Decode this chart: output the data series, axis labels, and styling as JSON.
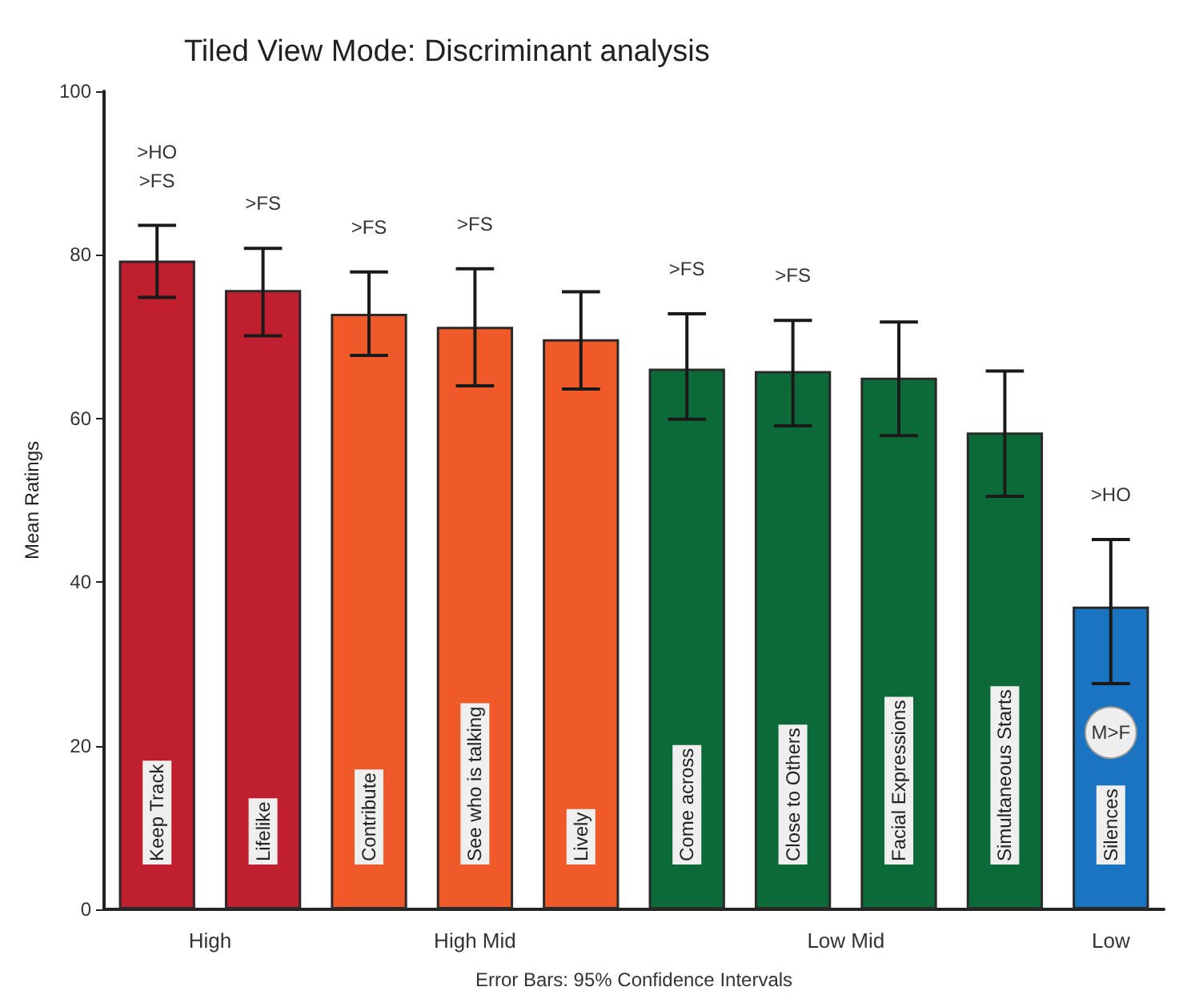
{
  "chart_data": {
    "type": "bar",
    "title": "Tiled View Mode: Discriminant analysis",
    "ylabel": "Mean Ratings",
    "categories": [
      "Keep Track",
      "Lifelike",
      "Contribute",
      "See who is talking",
      "Lively",
      "Come across",
      "Close to Others",
      "Facial Expressions",
      "Simultaneous Starts",
      "Silences"
    ],
    "values": [
      79.3,
      75.7,
      72.8,
      71.2,
      69.7,
      66.1,
      65.8,
      65,
      58.3,
      37
    ],
    "errors": [
      [
        74.8,
        83.6
      ],
      [
        70.1,
        80.8
      ],
      [
        67.7,
        77.9
      ],
      [
        64,
        78.3
      ],
      [
        63.6,
        75.5
      ],
      [
        59.9,
        72.8
      ],
      [
        59.1,
        72
      ],
      [
        57.9,
        71.8
      ],
      [
        50.5,
        65.8
      ],
      [
        27.6,
        45.2
      ]
    ],
    "colors": [
      "#c01f2f",
      "#c01f2f",
      "#f05a28",
      "#f05a28",
      "#f05a28",
      "#0c6a38",
      "#0c6a38",
      "#0c6a38",
      "#0c6a38",
      "#1b74c2"
    ],
    "ylim": [
      0,
      100
    ],
    "yticks": [
      0,
      20,
      40,
      60,
      80,
      100
    ],
    "grid": false,
    "annotations": [
      "High",
      "High Mid",
      "Low Mid",
      "Low",
      "Error Bars: 95% Confidence Intervals",
      ">HO",
      ">FS",
      ">FS",
      ">FS",
      ">FS",
      ">FS",
      ">FS",
      ">HO",
      "M>F"
    ]
  }
}
